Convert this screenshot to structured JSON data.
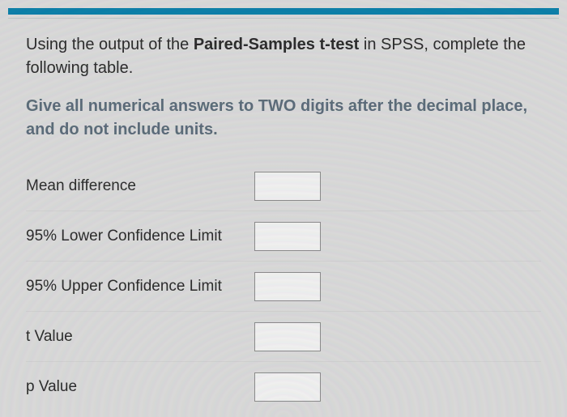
{
  "colors": {
    "topbar": "#0a7ea8",
    "background": "#d8d8d8",
    "instruction_text": "#5a6a78",
    "body_text": "#2a2a2a",
    "row_border": "#cfcfcf",
    "input_border": "#8a8a8a",
    "input_bg": "#efefef"
  },
  "prompt": {
    "line1_pre": "Using the output of the ",
    "line1_bold": "Paired-Samples t-test",
    "line1_post": " in SPSS, complete the following table.",
    "line2": "Give all numerical answers to TWO digits after the decimal place, and do not include units."
  },
  "fields": [
    {
      "label": "Mean difference",
      "value": ""
    },
    {
      "label": "95% Lower Confidence Limit",
      "value": ""
    },
    {
      "label": "95% Upper Confidence Limit",
      "value": ""
    },
    {
      "label": "t Value",
      "value": ""
    },
    {
      "label": "p Value",
      "value": ""
    }
  ]
}
